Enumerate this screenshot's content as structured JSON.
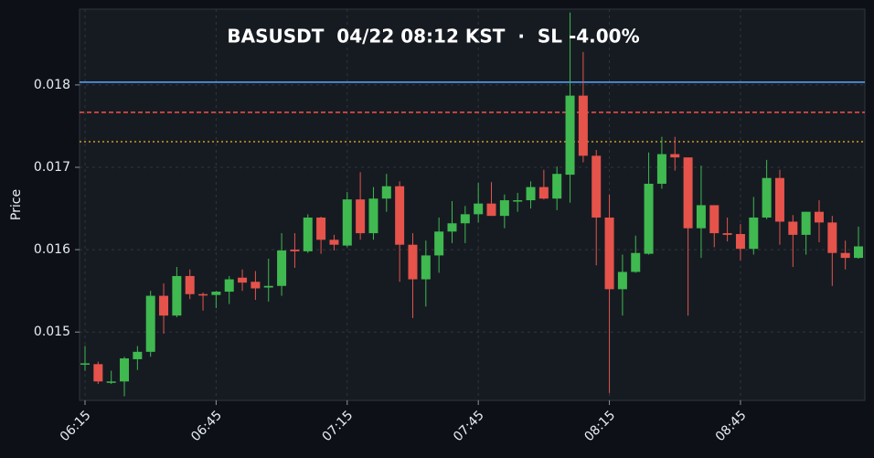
{
  "chart_data": {
    "type": "candlestick",
    "title": "BASUSDT  04/22 08:12 KST  ·  SL -4.00%",
    "y_label": "Price",
    "x": [
      "06:15",
      "06:18",
      "06:21",
      "06:24",
      "06:27",
      "06:30",
      "06:33",
      "06:36",
      "06:39",
      "06:42",
      "06:45",
      "06:48",
      "06:51",
      "06:54",
      "06:57",
      "07:00",
      "07:03",
      "07:06",
      "07:09",
      "07:12",
      "07:15",
      "07:18",
      "07:21",
      "07:24",
      "07:27",
      "07:30",
      "07:33",
      "07:36",
      "07:39",
      "07:42",
      "07:45",
      "07:48",
      "07:51",
      "07:54",
      "07:57",
      "08:00",
      "08:03",
      "08:06",
      "08:09",
      "08:12",
      "08:15",
      "08:18",
      "08:21",
      "08:24",
      "08:27",
      "08:30",
      "08:33",
      "08:36",
      "08:39",
      "08:42",
      "08:45",
      "08:48",
      "08:51",
      "08:54",
      "08:57",
      "09:00",
      "09:03",
      "09:06",
      "09:09",
      "09:12"
    ],
    "open": [
      0.01461,
      0.01461,
      0.01439,
      0.0144,
      0.01467,
      0.01476,
      0.01544,
      0.0152,
      0.01568,
      0.01546,
      0.01545,
      0.01549,
      0.01566,
      0.01561,
      0.01554,
      0.01556,
      0.016,
      0.01598,
      0.01639,
      0.01612,
      0.01605,
      0.01661,
      0.0162,
      0.01662,
      0.01677,
      0.01606,
      0.01564,
      0.01593,
      0.01622,
      0.01632,
      0.01643,
      0.01656,
      0.01641,
      0.01659,
      0.0166,
      0.01676,
      0.01662,
      0.01691,
      0.01787,
      0.01714,
      0.01639,
      0.01552,
      0.01573,
      0.01595,
      0.0168,
      0.01716,
      0.01712,
      0.01626,
      0.01654,
      0.0162,
      0.01619,
      0.01601,
      0.01639,
      0.01687,
      0.01634,
      0.01618,
      0.01646,
      0.01633,
      0.01596,
      0.0159
    ],
    "high": [
      0.01483,
      0.01464,
      0.01453,
      0.0147,
      0.01483,
      0.0155,
      0.01559,
      0.01579,
      0.01576,
      0.01548,
      0.0155,
      0.01568,
      0.01576,
      0.01574,
      0.01589,
      0.0162,
      0.0162,
      0.01643,
      0.0164,
      0.01618,
      0.0167,
      0.01694,
      0.01676,
      0.01692,
      0.01683,
      0.0162,
      0.01611,
      0.01639,
      0.01659,
      0.01653,
      0.01681,
      0.01682,
      0.01667,
      0.01669,
      0.01683,
      0.01697,
      0.01701,
      0.01888,
      0.0184,
      0.01721,
      0.01667,
      0.01594,
      0.01617,
      0.01718,
      0.01737,
      0.01737,
      0.01712,
      0.01702,
      0.01654,
      0.01639,
      0.01631,
      0.01664,
      0.01709,
      0.01697,
      0.01642,
      0.01646,
      0.0166,
      0.01641,
      0.01611,
      0.01628
    ],
    "low": [
      0.01453,
      0.01437,
      0.01437,
      0.01422,
      0.01454,
      0.0147,
      0.01498,
      0.01518,
      0.0154,
      0.01526,
      0.01529,
      0.01534,
      0.0155,
      0.01539,
      0.01537,
      0.01544,
      0.01578,
      0.01596,
      0.01595,
      0.01599,
      0.01603,
      0.01612,
      0.01612,
      0.01646,
      0.01561,
      0.01517,
      0.01531,
      0.01572,
      0.01608,
      0.01608,
      0.01633,
      0.01641,
      0.01626,
      0.01646,
      0.0165,
      0.01661,
      0.01648,
      0.01657,
      0.01706,
      0.01581,
      0.01426,
      0.0152,
      0.01572,
      0.01594,
      0.01674,
      0.01696,
      0.0152,
      0.0159,
      0.01603,
      0.0161,
      0.01587,
      0.01594,
      0.01637,
      0.01606,
      0.01579,
      0.01594,
      0.01609,
      0.01556,
      0.01576,
      0.01589
    ],
    "close": [
      0.01462,
      0.0144,
      0.0144,
      0.01468,
      0.01476,
      0.01544,
      0.0152,
      0.01568,
      0.01546,
      0.01545,
      0.01549,
      0.01564,
      0.0156,
      0.01553,
      0.01556,
      0.01599,
      0.01598,
      0.01639,
      0.01612,
      0.01606,
      0.01661,
      0.0162,
      0.01662,
      0.01677,
      0.01606,
      0.01564,
      0.01593,
      0.01622,
      0.01632,
      0.01643,
      0.01656,
      0.01641,
      0.0166,
      0.0166,
      0.01676,
      0.01662,
      0.01692,
      0.01787,
      0.01714,
      0.01639,
      0.01552,
      0.01573,
      0.01596,
      0.0168,
      0.01716,
      0.01712,
      0.01626,
      0.01654,
      0.0162,
      0.01618,
      0.01601,
      0.01639,
      0.01687,
      0.01634,
      0.01618,
      0.01646,
      0.01633,
      0.01596,
      0.0159,
      0.01604
    ],
    "up_color": "#3fb950",
    "down_color": "#e5534b",
    "hlines": [
      {
        "value": 0.018033,
        "color": "#58a6ff",
        "style": "solid"
      },
      {
        "value": 0.017667,
        "color": "#f85149",
        "style": "dashed"
      },
      {
        "value": 0.017311,
        "color": "#d29922",
        "style": "dotted"
      }
    ],
    "ylim": [
      0.01417,
      0.01892
    ],
    "yticks": [
      0.015,
      0.016,
      0.017,
      0.018
    ],
    "xticks": [
      "06:15",
      "06:45",
      "07:15",
      "07:45",
      "08:15",
      "08:45"
    ],
    "grid": true
  }
}
